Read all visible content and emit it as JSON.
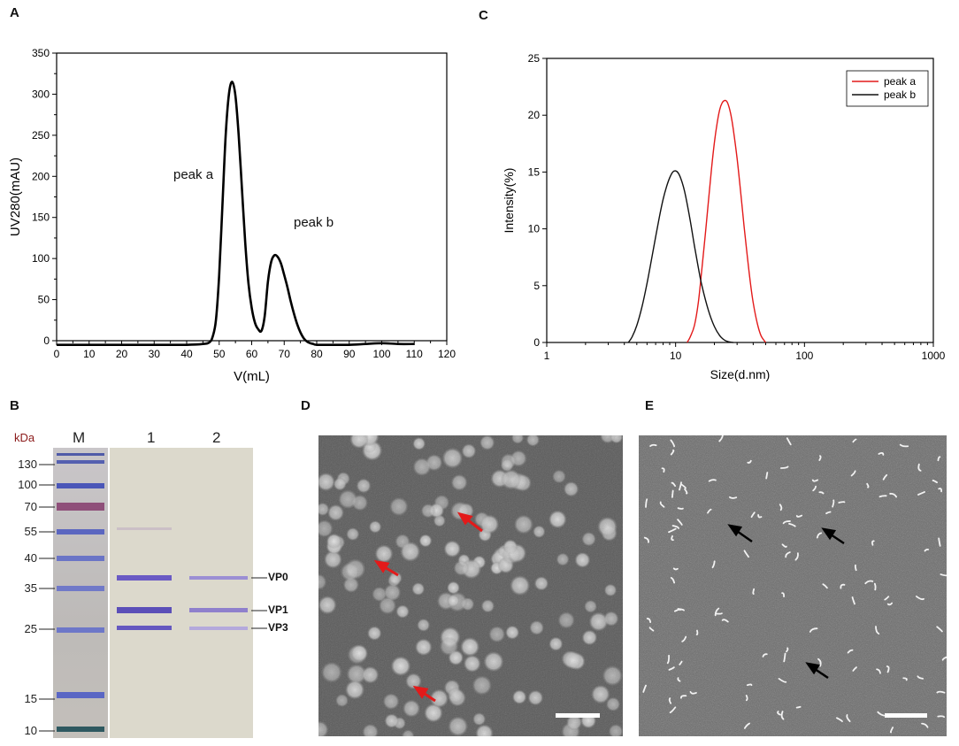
{
  "panels": {
    "a": "A",
    "b": "B",
    "c": "C",
    "d": "D",
    "e": "E"
  },
  "chart_data": [
    {
      "panel": "A",
      "type": "line",
      "xlabel": "V(mL)",
      "ylabel": "UV280(mAU)",
      "xlim": [
        0,
        120
      ],
      "ylim": [
        0,
        350
      ],
      "xticks": [
        "0",
        "10",
        "20",
        "30",
        "40",
        "50",
        "60",
        "70",
        "80",
        "90",
        "100",
        "110",
        "120"
      ],
      "yticks": [
        "0",
        "50",
        "100",
        "150",
        "200",
        "250",
        "300",
        "350"
      ],
      "grid": false,
      "annotations": [
        "peak a",
        "peak b"
      ],
      "series": [
        {
          "x": [
            0,
            10,
            20,
            30,
            40,
            45,
            47,
            48,
            49,
            50,
            51,
            52,
            53,
            54,
            55,
            56,
            57,
            58,
            59,
            60,
            61,
            62,
            63,
            64,
            65,
            66,
            67,
            68,
            69,
            70,
            71,
            72,
            73,
            74,
            75,
            76,
            77,
            78,
            79,
            80,
            85,
            90,
            95,
            100,
            105,
            110
          ],
          "y": [
            -5,
            -5,
            -5,
            -5,
            -5,
            -4,
            -2,
            5,
            25,
            80,
            165,
            250,
            300,
            315,
            298,
            250,
            185,
            120,
            70,
            40,
            22,
            14,
            12,
            30,
            72,
            96,
            104,
            102,
            94,
            80,
            65,
            48,
            33,
            20,
            10,
            3,
            -1,
            -3,
            -4,
            -5,
            -5,
            -5,
            -4,
            -3,
            -4,
            -4
          ]
        }
      ]
    },
    {
      "panel": "C",
      "type": "line",
      "xlabel": "Size(d.nm)",
      "ylabel": "Intensity(%)",
      "xscale": "log",
      "xlim": [
        1,
        1000
      ],
      "ylim": [
        0,
        25
      ],
      "xticks": [
        "1",
        "10",
        "100",
        "1000"
      ],
      "yticks": [
        "0",
        "5",
        "10",
        "15",
        "20",
        "25"
      ],
      "grid": false,
      "legend": "top-right",
      "series": [
        {
          "name": "peak a",
          "color": "#e31a1a",
          "x": [
            12.3,
            13,
            14,
            15,
            16,
            17,
            18,
            19,
            20,
            21,
            22,
            23,
            24,
            25,
            26,
            27,
            28,
            30,
            32,
            34,
            36,
            38,
            40,
            43,
            46,
            50
          ],
          "y": [
            0,
            0.5,
            1.5,
            3.5,
            6.5,
            9.5,
            12.5,
            15.3,
            17.6,
            19.3,
            20.5,
            21.1,
            21.3,
            21.2,
            20.7,
            19.9,
            18.8,
            16.2,
            13.2,
            10.2,
            7.6,
            5.3,
            3.5,
            1.7,
            0.6,
            0
          ]
        },
        {
          "name": "peak b",
          "color": "#111111",
          "x": [
            4.3,
            4.6,
            5,
            5.5,
            6,
            6.5,
            7,
            7.5,
            8,
            8.5,
            9,
            9.5,
            10,
            10.5,
            11,
            11.5,
            12,
            13,
            14,
            15,
            16,
            18,
            20,
            22,
            24,
            26,
            28
          ],
          "y": [
            0,
            0.5,
            1.5,
            3.2,
            5.2,
            7.3,
            9.3,
            11.1,
            12.6,
            13.7,
            14.5,
            15.0,
            15.1,
            14.9,
            14.4,
            13.7,
            12.8,
            10.7,
            8.5,
            6.6,
            5.0,
            2.8,
            1.4,
            0.6,
            0.2,
            0.05,
            0
          ]
        }
      ]
    }
  ],
  "gel": {
    "unit": "kDa",
    "marker_lane": "M",
    "lane1": "1",
    "lane2": "2",
    "markers": [
      "130",
      "100",
      "70",
      "55",
      "40",
      "35",
      "25",
      "15",
      "10"
    ],
    "bands": [
      "VP0",
      "VP1",
      "VP3"
    ]
  }
}
